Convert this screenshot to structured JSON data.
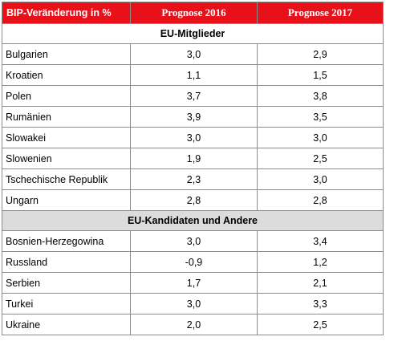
{
  "header": {
    "col_region": "BIP-Veränderung in %",
    "col_2016": "Prognose 2016",
    "col_2017": "Prognose 2017"
  },
  "colors": {
    "header_bg": "#e8111a",
    "header_text": "#ffffff",
    "section2_bg": "#dcdcdc"
  },
  "sections": [
    {
      "title": "EU-Mitglieder",
      "rows": [
        {
          "country": "Bulgarien",
          "p2016": "3,0",
          "p2017": "2,9"
        },
        {
          "country": "Kroatien",
          "p2016": "1,1",
          "p2017": "1,5"
        },
        {
          "country": "Polen",
          "p2016": "3,7",
          "p2017": "3,8"
        },
        {
          "country": "Rumänien",
          "p2016": "3,9",
          "p2017": "3,5"
        },
        {
          "country": "Slowakei",
          "p2016": "3,0",
          "p2017": "3,0"
        },
        {
          "country": "Slowenien",
          "p2016": "1,9",
          "p2017": "2,5"
        },
        {
          "country": "Tschechische Republik",
          "p2016": "2,3",
          "p2017": "3,0"
        },
        {
          "country": "Ungarn",
          "p2016": "2,8",
          "p2017": "2,8"
        }
      ]
    },
    {
      "title": "EU-Kandidaten und Andere",
      "rows": [
        {
          "country": "Bosnien-Herzegowina",
          "p2016": "3,0",
          "p2017": "3,4"
        },
        {
          "country": "Russland",
          "p2016": "-0,9",
          "p2017": "1,2"
        },
        {
          "country": "Serbien",
          "p2016": "1,7",
          "p2017": "2,1"
        },
        {
          "country": "Turkei",
          "p2016": "3,0",
          "p2017": "3,3"
        },
        {
          "country": "Ukraine",
          "p2016": "2,0",
          "p2017": "2,5"
        }
      ]
    }
  ]
}
